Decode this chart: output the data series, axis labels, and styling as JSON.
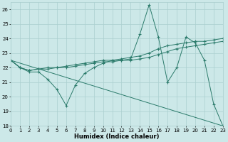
{
  "xlabel": "Humidex (Indice chaleur)",
  "background_color": "#cce8e8",
  "grid_color": "#aacfcf",
  "line_color": "#2a7a6a",
  "xlim": [
    0,
    23
  ],
  "ylim": [
    18,
    26.5
  ],
  "yticks": [
    18,
    19,
    20,
    21,
    22,
    23,
    24,
    25,
    26
  ],
  "xticks": [
    0,
    1,
    2,
    3,
    4,
    5,
    6,
    7,
    8,
    9,
    10,
    11,
    12,
    13,
    14,
    15,
    16,
    17,
    18,
    19,
    20,
    21,
    22,
    23
  ],
  "series": [
    {
      "x": [
        0,
        1,
        2,
        3,
        4,
        5,
        6,
        7,
        8,
        9,
        10,
        11,
        12,
        13,
        14,
        15,
        16,
        17,
        18,
        19,
        20,
        21,
        22,
        23
      ],
      "y": [
        22.5,
        22.0,
        21.7,
        21.7,
        21.2,
        20.5,
        19.4,
        20.8,
        21.6,
        22.0,
        22.3,
        22.5,
        22.5,
        22.6,
        24.3,
        26.3,
        24.1,
        21.0,
        22.0,
        24.1,
        23.7,
        22.5,
        19.5,
        18.0
      ],
      "linestyle": "-",
      "marker": true
    },
    {
      "x": [
        0,
        1,
        2,
        3,
        4,
        5,
        6,
        7,
        8,
        9,
        10,
        11,
        12,
        13,
        14,
        15,
        16,
        17,
        18,
        19,
        20,
        21,
        22,
        23
      ],
      "y": [
        22.5,
        22.0,
        21.8,
        21.9,
        22.0,
        22.0,
        22.1,
        22.2,
        22.3,
        22.4,
        22.5,
        22.5,
        22.6,
        22.7,
        22.8,
        23.0,
        23.3,
        23.5,
        23.6,
        23.7,
        23.8,
        23.8,
        23.9,
        24.0
      ],
      "linestyle": "-",
      "marker": true
    },
    {
      "x": [
        0,
        1,
        2,
        3,
        4,
        5,
        6,
        7,
        8,
        9,
        10,
        11,
        12,
        13,
        14,
        15,
        16,
        17,
        18,
        19,
        20,
        21,
        22,
        23
      ],
      "y": [
        22.5,
        22.0,
        21.8,
        21.9,
        21.9,
        22.0,
        22.0,
        22.1,
        22.2,
        22.3,
        22.4,
        22.4,
        22.5,
        22.5,
        22.6,
        22.7,
        22.9,
        23.1,
        23.3,
        23.4,
        23.5,
        23.6,
        23.7,
        23.8
      ],
      "linestyle": "-",
      "marker": true
    },
    {
      "x": [
        0,
        23
      ],
      "y": [
        22.5,
        18.0
      ],
      "linestyle": "-",
      "marker": false
    }
  ]
}
